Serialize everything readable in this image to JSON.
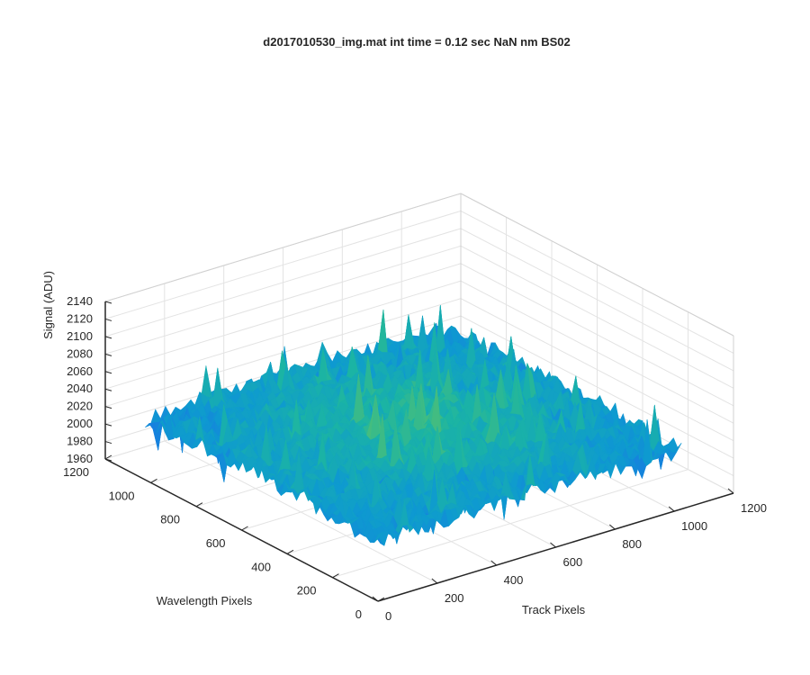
{
  "chart_data": {
    "type": "surface",
    "title": "d2017010530_img.mat int time = 0.12 sec  NaN nm BS02",
    "xlabel": "Track Pixels",
    "ylabel": "Wavelength Pixels",
    "zlabel": "Signal (ADU)",
    "xlim": [
      0,
      1200
    ],
    "ylim": [
      0,
      1200
    ],
    "zlim": [
      1960,
      2140
    ],
    "x_ticks": [
      0,
      200,
      400,
      600,
      800,
      1000,
      1200
    ],
    "y_ticks": [
      0,
      200,
      400,
      600,
      800,
      1000,
      1200
    ],
    "z_ticks": [
      1960,
      1980,
      2000,
      2020,
      2040,
      2060,
      2080,
      2100,
      2120,
      2140
    ],
    "x_tick_labels": [
      "0",
      "200",
      "400",
      "600",
      "800",
      "1000",
      "1200"
    ],
    "y_tick_labels": [
      "0",
      "200",
      "400",
      "600",
      "800",
      "1000",
      "1200"
    ],
    "z_tick_labels": [
      "1960",
      "1980",
      "2000",
      "2020",
      "2040",
      "2060",
      "2080",
      "2100",
      "2120",
      "2140"
    ],
    "surface": {
      "x_range": [
        0,
        1024
      ],
      "y_range": [
        0,
        1024
      ],
      "base_signal": 2025,
      "center_signal": 2050,
      "noise_amplitude": 20,
      "min_signal": 1965,
      "max_signal": 2120,
      "colormap": "parula",
      "colormap_stops": [
        "#3e26a8",
        "#1c6fe8",
        "#0e9ad0",
        "#1bb4a4",
        "#5bc26a",
        "#b3c338",
        "#f5d81e"
      ]
    },
    "grid": true,
    "legend": "none"
  }
}
